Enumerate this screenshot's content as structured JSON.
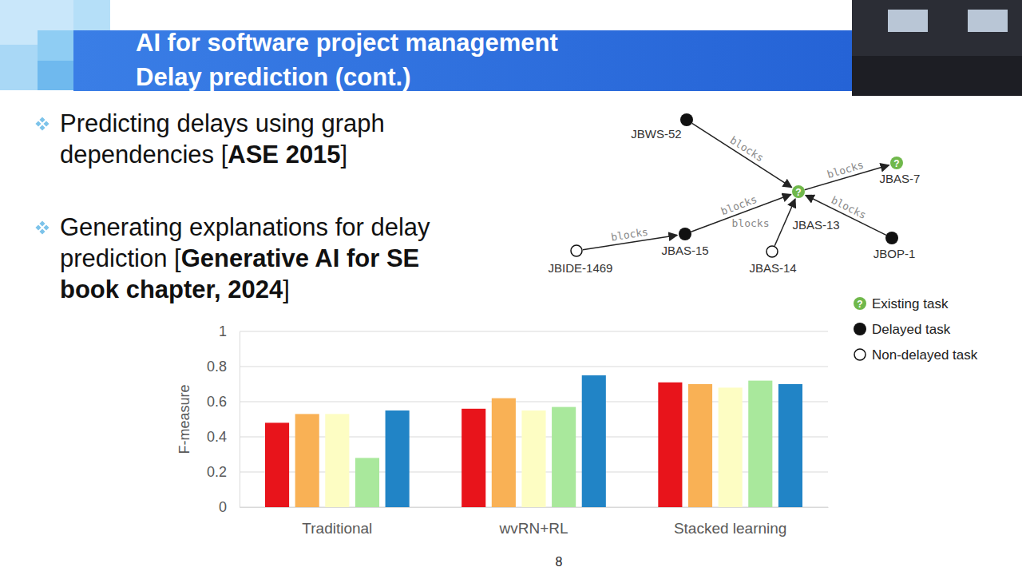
{
  "slide": {
    "title_lines": [
      "AI for software project management",
      "Delay prediction (cont.)"
    ],
    "bullets": [
      [
        [
          {
            "text": "Predicting delays using graph",
            "bold": false
          }
        ],
        [
          {
            "text": "dependencies [",
            "bold": false
          },
          {
            "text": "ASE 2015",
            "bold": true
          },
          {
            "text": "]",
            "bold": false
          }
        ]
      ],
      [
        [
          {
            "text": "Generating explanations for delay",
            "bold": false
          }
        ],
        [
          {
            "text": "prediction [",
            "bold": false
          },
          {
            "text": "Generative AI for SE",
            "bold": true
          }
        ],
        [
          {
            "text": "book chapter, 2024",
            "bold": true
          },
          {
            "text": "]",
            "bold": false
          }
        ]
      ]
    ],
    "page_number": "8"
  },
  "diagram": {
    "nodes": [
      {
        "id": "JBWS-52",
        "status": "delayed"
      },
      {
        "id": "JBAS-13",
        "status": "existing"
      },
      {
        "id": "JBAS-7",
        "status": "existing"
      },
      {
        "id": "JBAS-15",
        "status": "delayed"
      },
      {
        "id": "JBIDE-1469",
        "status": "non-delayed"
      },
      {
        "id": "JBAS-14",
        "status": "non-delayed"
      },
      {
        "id": "JBOP-1",
        "status": "delayed"
      }
    ],
    "edges": [
      {
        "source": "JBWS-52",
        "target": "JBAS-13",
        "label": "blocks"
      },
      {
        "source": "JBAS-13",
        "target": "JBAS-7",
        "label": "blocks"
      },
      {
        "source": "JBOP-1",
        "target": "JBAS-13",
        "label": "blocks"
      },
      {
        "source": "JBIDE-1469",
        "target": "JBAS-15",
        "label": "blocks"
      },
      {
        "source": "JBAS-15",
        "target": "JBAS-13",
        "label": "blocks"
      },
      {
        "source": "JBAS-14",
        "target": "JBAS-13",
        "label": "blocks"
      }
    ],
    "existing_symbol": "?",
    "legend": [
      {
        "status": "existing",
        "label": "Existing task"
      },
      {
        "status": "delayed",
        "label": "Delayed task"
      },
      {
        "status": "non-delayed",
        "label": "Non-delayed task"
      }
    ]
  },
  "chart_data": {
    "type": "bar",
    "y_label": "F-measure",
    "categories": [
      "Traditional",
      "wvRN+RL",
      "Stacked learning"
    ],
    "series": [
      {
        "color": "#e8141b",
        "values": [
          0.48,
          0.56,
          0.71
        ]
      },
      {
        "color": "#f9b155",
        "values": [
          0.53,
          0.62,
          0.7
        ]
      },
      {
        "color": "#fdfdc3",
        "values": [
          0.53,
          0.55,
          0.68
        ]
      },
      {
        "color": "#a9e89c",
        "values": [
          0.28,
          0.57,
          0.72
        ]
      },
      {
        "color": "#2184c6",
        "values": [
          0.55,
          0.75,
          0.7
        ]
      }
    ],
    "ylim": [
      0,
      1
    ],
    "yticks": [
      0,
      0.2,
      0.4,
      0.6,
      0.8,
      1
    ],
    "grid": true
  }
}
